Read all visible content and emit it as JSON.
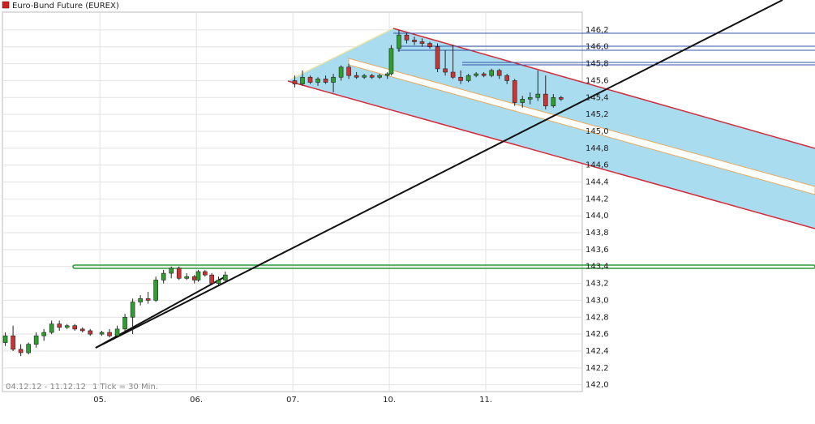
{
  "chart_data": {
    "type": "candlestick",
    "title": "Euro-Bund Future (EUREX)",
    "period": "04.12.12 - 11.12.12",
    "interval": "1 Tick = 30 Min.",
    "up_color": "#2e9e2e",
    "down_color": "#cc3333",
    "xlim": [
      -1.01,
      5.0
    ],
    "xticks": [
      {
        "value": 0,
        "label": "05."
      },
      {
        "value": 1,
        "label": "06."
      },
      {
        "value": 2,
        "label": "07."
      },
      {
        "value": 3,
        "label": "10."
      },
      {
        "value": 4,
        "label": "11."
      }
    ],
    "ylim": [
      141.92,
      146.41
    ],
    "yticks": [
      {
        "value": 142,
        "label": "142,0"
      },
      {
        "value": 142.2,
        "label": "142,2"
      },
      {
        "value": 142.4,
        "label": "142,4"
      },
      {
        "value": 142.6,
        "label": "142,6"
      },
      {
        "value": 142.8,
        "label": "142,8"
      },
      {
        "value": 143,
        "label": "143,0"
      },
      {
        "value": 143.2,
        "label": "143,2"
      },
      {
        "value": 143.4,
        "label": "143,4"
      },
      {
        "value": 143.6,
        "label": "143,6"
      },
      {
        "value": 143.8,
        "label": "143,8"
      },
      {
        "value": 144,
        "label": "144,0"
      },
      {
        "value": 144.2,
        "label": "144,2"
      },
      {
        "value": 144.4,
        "label": "144,4"
      },
      {
        "value": 144.6,
        "label": "144,6"
      },
      {
        "value": 144.8,
        "label": "144,8"
      },
      {
        "value": 145,
        "label": "145,0"
      },
      {
        "value": 145.2,
        "label": "145,2"
      },
      {
        "value": 145.4,
        "label": "145,4"
      },
      {
        "value": 145.6,
        "label": "145,6"
      },
      {
        "value": 145.8,
        "label": "145,8"
      },
      {
        "value": 146,
        "label": "146,0"
      },
      {
        "value": 146.2,
        "label": "146,2"
      }
    ],
    "grid": true,
    "x": [
      -0.98,
      -0.9,
      -0.82,
      -0.74,
      -0.66,
      -0.58,
      -0.5,
      -0.42,
      -0.34,
      -0.26,
      -0.18,
      -0.1,
      0.02,
      0.1,
      0.18,
      0.26,
      0.34,
      0.42,
      0.5,
      0.58,
      0.66,
      0.74,
      0.82,
      0.9,
      0.98,
      1.02,
      1.09,
      1.16,
      1.23,
      1.3,
      2.02,
      2.1,
      2.18,
      2.26,
      2.34,
      2.42,
      2.5,
      2.58,
      2.66,
      2.74,
      2.82,
      2.9,
      2.98,
      3.02,
      3.1,
      3.18,
      3.26,
      3.34,
      3.42,
      3.5,
      3.58,
      3.66,
      3.74,
      3.82,
      3.9,
      3.98,
      4.06,
      4.14,
      4.22,
      4.3,
      4.38,
      4.46,
      4.54,
      4.62,
      4.7,
      4.78
    ],
    "open": [
      142.5,
      142.58,
      142.42,
      142.38,
      142.48,
      142.58,
      142.62,
      142.72,
      142.68,
      142.7,
      142.66,
      142.64,
      142.6,
      142.62,
      142.58,
      142.66,
      142.8,
      142.98,
      143.02,
      143.0,
      143.24,
      143.32,
      143.38,
      143.26,
      143.28,
      143.24,
      143.34,
      143.3,
      143.2,
      143.24,
      145.6,
      145.56,
      145.64,
      145.58,
      145.62,
      145.58,
      145.64,
      145.76,
      145.66,
      145.64,
      145.66,
      145.64,
      145.66,
      145.68,
      145.98,
      146.14,
      146.08,
      146.06,
      146.04,
      146.0,
      145.74,
      145.7,
      145.64,
      145.6,
      145.66,
      145.68,
      145.66,
      145.72,
      145.66,
      145.6,
      145.34,
      145.38,
      145.4,
      145.44,
      145.3,
      145.4
    ],
    "high": [
      142.62,
      142.7,
      142.48,
      142.5,
      142.62,
      142.66,
      142.76,
      142.76,
      142.72,
      142.72,
      142.68,
      142.66,
      142.64,
      142.66,
      142.7,
      142.84,
      143.02,
      143.06,
      143.1,
      143.28,
      143.36,
      143.4,
      143.4,
      143.32,
      143.3,
      143.36,
      143.36,
      143.32,
      143.28,
      143.34,
      145.66,
      145.72,
      145.66,
      145.64,
      145.66,
      145.68,
      145.78,
      145.8,
      145.7,
      145.68,
      145.68,
      145.68,
      145.7,
      146.02,
      146.2,
      146.16,
      146.12,
      146.1,
      146.06,
      146.04,
      145.96,
      146.02,
      145.72,
      145.68,
      145.7,
      145.7,
      145.74,
      145.74,
      145.68,
      145.62,
      145.42,
      145.46,
      145.72,
      145.66,
      145.44,
      145.42
    ],
    "low": [
      142.46,
      142.4,
      142.34,
      142.36,
      142.44,
      142.52,
      142.6,
      142.64,
      142.66,
      142.64,
      142.62,
      142.58,
      142.58,
      142.56,
      142.56,
      142.64,
      142.6,
      142.94,
      142.96,
      142.98,
      143.2,
      143.26,
      143.24,
      143.24,
      143.2,
      143.22,
      143.28,
      143.18,
      143.18,
      143.22,
      145.52,
      145.54,
      145.56,
      145.54,
      145.56,
      145.46,
      145.6,
      145.62,
      145.62,
      145.62,
      145.62,
      145.62,
      145.62,
      145.66,
      145.94,
      146.04,
      146.02,
      146.0,
      145.98,
      145.7,
      145.66,
      145.62,
      145.56,
      145.58,
      145.64,
      145.64,
      145.64,
      145.62,
      145.56,
      145.3,
      145.28,
      145.32,
      145.36,
      145.26,
      145.28,
      145.36
    ],
    "close": [
      142.58,
      142.42,
      142.38,
      142.48,
      142.58,
      142.62,
      142.72,
      142.68,
      142.7,
      142.66,
      142.64,
      142.6,
      142.62,
      142.58,
      142.66,
      142.8,
      142.98,
      143.02,
      143.0,
      143.24,
      143.32,
      143.38,
      143.26,
      143.28,
      143.24,
      143.34,
      143.3,
      143.2,
      143.24,
      143.3,
      145.56,
      145.64,
      145.58,
      145.62,
      145.58,
      145.64,
      145.76,
      145.66,
      145.64,
      145.66,
      145.64,
      145.66,
      145.68,
      145.98,
      146.14,
      146.08,
      146.06,
      146.04,
      146.0,
      145.74,
      145.7,
      145.64,
      145.6,
      145.66,
      145.68,
      145.66,
      145.72,
      145.66,
      145.6,
      145.34,
      145.38,
      145.4,
      145.44,
      145.3,
      145.4,
      145.38
    ]
  }
}
